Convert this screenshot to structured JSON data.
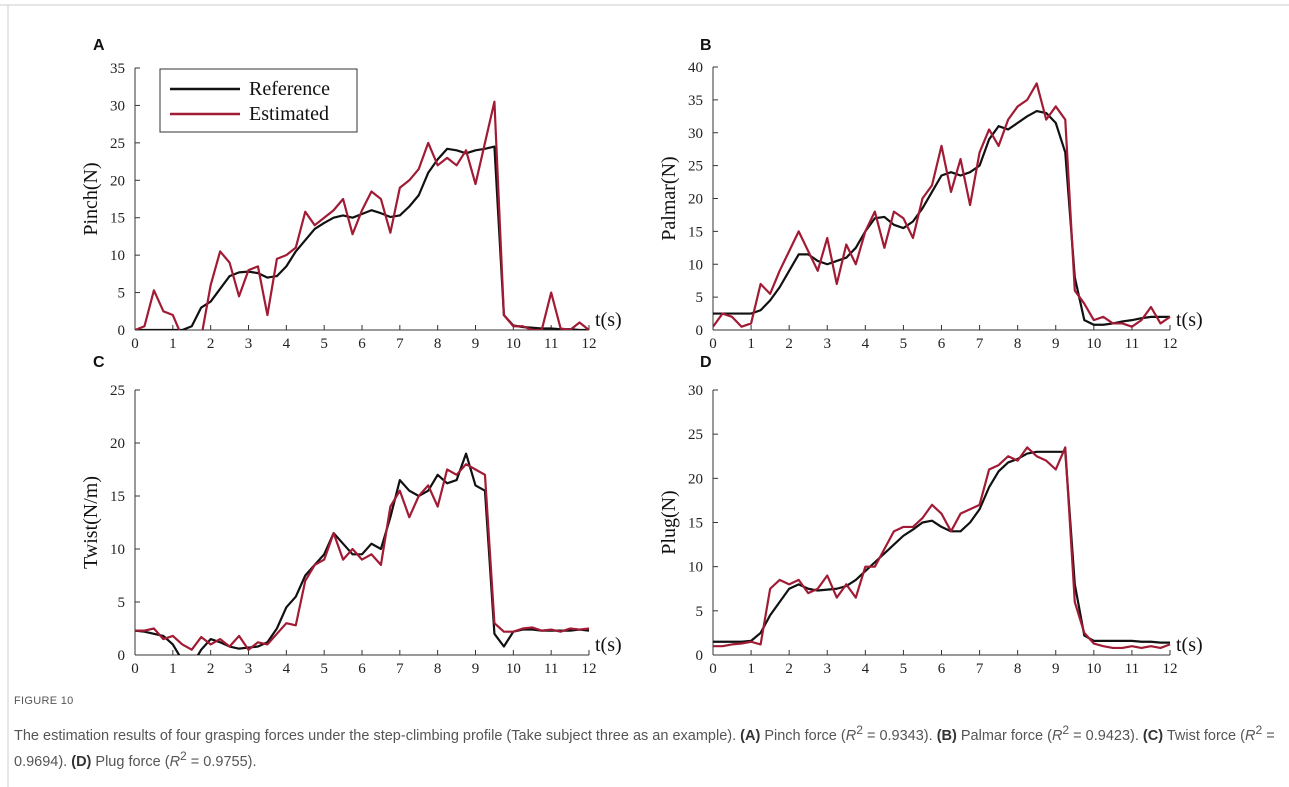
{
  "figure": {
    "label": "FIGURE 10",
    "caption": [
      {
        "text": "The estimation results of four grasping forces under the step-climbing profile (Take subject three as an example). ",
        "style": "plain"
      },
      {
        "text": "(A)",
        "style": "bold"
      },
      {
        "text": " Pinch force (",
        "style": "plain"
      },
      {
        "text": "R",
        "style": "italic"
      },
      {
        "text": "2",
        "style": "sup"
      },
      {
        "text": " = 0.9343). ",
        "style": "plain"
      },
      {
        "text": "(B)",
        "style": "bold"
      },
      {
        "text": " Palmar force (",
        "style": "plain"
      },
      {
        "text": "R",
        "style": "italic"
      },
      {
        "text": "2",
        "style": "sup"
      },
      {
        "text": " = 0.9423). ",
        "style": "plain"
      },
      {
        "text": "(C)",
        "style": "bold"
      },
      {
        "text": " Twist force (",
        "style": "plain"
      },
      {
        "text": "R",
        "style": "italic"
      },
      {
        "text": "2",
        "style": "sup"
      },
      {
        "text": " = 0.9694). ",
        "style": "plain"
      },
      {
        "text": "(D)",
        "style": "bold"
      },
      {
        "text": " Plug force (",
        "style": "plain"
      },
      {
        "text": "R",
        "style": "italic"
      },
      {
        "text": "2",
        "style": "sup"
      },
      {
        "text": " = 0.9755).",
        "style": "plain"
      }
    ]
  },
  "chart_data": [
    {
      "type": "line",
      "panel": "A",
      "ylabel": "Pinch(N)",
      "xlabel": "t(s)",
      "legend": "upper left",
      "xlim": [
        0,
        12
      ],
      "xticks": [
        0,
        1,
        2,
        3,
        4,
        5,
        6,
        7,
        8,
        9,
        10,
        11,
        12
      ],
      "ylim": [
        0,
        35
      ],
      "yticks": [
        0,
        5,
        10,
        15,
        20,
        25,
        30,
        35
      ],
      "x": [
        0,
        0.25,
        0.5,
        0.75,
        1,
        1.25,
        1.5,
        1.75,
        2,
        2.25,
        2.5,
        2.75,
        3,
        3.25,
        3.5,
        3.75,
        4,
        4.25,
        4.5,
        4.75,
        5,
        5.25,
        5.5,
        5.75,
        6,
        6.25,
        6.5,
        6.75,
        7,
        7.25,
        7.5,
        7.75,
        8,
        8.25,
        8.5,
        8.75,
        9,
        9.25,
        9.5,
        9.75,
        10,
        10.25,
        10.5,
        10.75,
        11,
        11.25,
        11.5,
        11.75,
        12
      ],
      "series": [
        {
          "name": "Reference",
          "color": "#111111",
          "values": [
            0,
            0,
            0,
            0,
            0,
            0,
            0.5,
            3,
            3.8,
            5.5,
            7.2,
            7.7,
            7.8,
            7.6,
            7,
            7.2,
            8.5,
            10.5,
            12,
            13.5,
            14.3,
            15,
            15.3,
            15,
            15.5,
            16,
            15.6,
            15.1,
            15.3,
            16.5,
            18,
            21,
            22.8,
            24.2,
            24,
            23.6,
            24,
            24.2,
            24.5,
            2,
            0.6,
            0.4,
            0.3,
            0.2,
            0.2,
            0.1,
            0.1,
            0,
            0
          ]
        },
        {
          "name": "Estimated",
          "color": "#a11b35",
          "values": [
            0,
            0.5,
            5.3,
            2.5,
            2,
            -1,
            -3,
            -1,
            6,
            10.5,
            9,
            4.5,
            8,
            8.5,
            2,
            9.5,
            10,
            11,
            15.8,
            14,
            15,
            16,
            17.5,
            12.8,
            16,
            18.5,
            17.5,
            13,
            19,
            20,
            21.5,
            25,
            22,
            23,
            22,
            24,
            19.5,
            25,
            30.5,
            2,
            0.5,
            0.5,
            0,
            0,
            5,
            0.2,
            0,
            1,
            0
          ]
        }
      ]
    },
    {
      "type": "line",
      "panel": "B",
      "ylabel": "Palmar(N)",
      "xlabel": "t(s)",
      "xlim": [
        0,
        12
      ],
      "xticks": [
        0,
        1,
        2,
        3,
        4,
        5,
        6,
        7,
        8,
        9,
        10,
        11,
        12
      ],
      "ylim": [
        0,
        40
      ],
      "yticks": [
        0,
        5,
        10,
        15,
        20,
        25,
        30,
        35,
        40
      ],
      "x": [
        0,
        0.25,
        0.5,
        0.75,
        1,
        1.25,
        1.5,
        1.75,
        2,
        2.25,
        2.5,
        2.75,
        3,
        3.25,
        3.5,
        3.75,
        4,
        4.25,
        4.5,
        4.75,
        5,
        5.25,
        5.5,
        5.75,
        6,
        6.25,
        6.5,
        6.75,
        7,
        7.25,
        7.5,
        7.75,
        8,
        8.25,
        8.5,
        8.75,
        9,
        9.25,
        9.5,
        9.75,
        10,
        10.25,
        10.5,
        10.75,
        11,
        11.25,
        11.5,
        11.75,
        12
      ],
      "series": [
        {
          "name": "Reference",
          "color": "#111111",
          "values": [
            2.5,
            2.5,
            2.5,
            2.5,
            2.5,
            3,
            4.5,
            6.5,
            9,
            11.5,
            11.5,
            10.5,
            10,
            10.5,
            11,
            12.5,
            15,
            17,
            17.2,
            16,
            15.5,
            16.5,
            18.5,
            21,
            23.5,
            24,
            23.5,
            24,
            25,
            29,
            31,
            30.5,
            31.5,
            32.5,
            33.3,
            33,
            31.5,
            27,
            8,
            1.5,
            0.8,
            0.8,
            1,
            1.3,
            1.5,
            1.8,
            2,
            2,
            2
          ]
        },
        {
          "name": "Estimated",
          "color": "#a11b35",
          "values": [
            0.5,
            2.5,
            2,
            0.5,
            1,
            7,
            5.5,
            9,
            12,
            15,
            12,
            9,
            14,
            7,
            13,
            10,
            15,
            18,
            12.5,
            18,
            17,
            14,
            20,
            22,
            28,
            21,
            26,
            19,
            27,
            30.5,
            28,
            32,
            34,
            35,
            37.5,
            32,
            34,
            32,
            6,
            4,
            1.5,
            2,
            1,
            1,
            0.5,
            1.5,
            3.5,
            1,
            2
          ]
        }
      ]
    },
    {
      "type": "line",
      "panel": "C",
      "ylabel": "Twist(N/m)",
      "xlabel": "t(s)",
      "xlim": [
        0,
        12
      ],
      "xticks": [
        0,
        1,
        2,
        3,
        4,
        5,
        6,
        7,
        8,
        9,
        10,
        11,
        12
      ],
      "ylim": [
        0,
        25
      ],
      "yticks": [
        0,
        5,
        10,
        15,
        20,
        25
      ],
      "x": [
        0,
        0.25,
        0.5,
        0.75,
        1,
        1.25,
        1.5,
        1.75,
        2,
        2.25,
        2.5,
        2.75,
        3,
        3.25,
        3.5,
        3.75,
        4,
        4.25,
        4.5,
        4.75,
        5,
        5.25,
        5.5,
        5.75,
        6,
        6.25,
        6.5,
        6.75,
        7,
        7.25,
        7.5,
        7.75,
        8,
        8.25,
        8.5,
        8.75,
        9,
        9.25,
        9.5,
        9.75,
        10,
        10.25,
        10.5,
        10.75,
        11,
        11.25,
        11.5,
        11.75,
        12
      ],
      "series": [
        {
          "name": "Reference",
          "color": "#111111",
          "values": [
            2.3,
            2.2,
            2,
            1.8,
            1,
            -0.5,
            -1,
            0.5,
            1.5,
            1.2,
            0.8,
            0.6,
            0.7,
            0.8,
            1.2,
            2.5,
            4.5,
            5.5,
            7.5,
            8.5,
            9.5,
            11.5,
            10.5,
            9.5,
            9.5,
            10.5,
            10,
            13,
            16.5,
            15.5,
            15,
            15.5,
            17,
            16.2,
            16.5,
            19,
            16,
            15.5,
            2,
            0.8,
            2.2,
            2.4,
            2.4,
            2.3,
            2.3,
            2.3,
            2.3,
            2.4,
            2.3
          ]
        },
        {
          "name": "Estimated",
          "color": "#a11b35",
          "values": [
            2.3,
            2.3,
            2.5,
            1.5,
            1.8,
            1,
            0.5,
            1.7,
            1,
            1.5,
            0.8,
            1.8,
            0.5,
            1.2,
            1,
            2,
            3,
            2.8,
            7,
            8.5,
            9,
            11.5,
            9,
            10,
            9,
            9.5,
            8.5,
            14,
            15.5,
            13,
            15,
            16,
            14,
            17.5,
            17,
            18,
            17.5,
            17,
            3,
            2.2,
            2.2,
            2.5,
            2.6,
            2.3,
            2.4,
            2.2,
            2.5,
            2.4,
            2.5
          ]
        }
      ]
    },
    {
      "type": "line",
      "panel": "D",
      "ylabel": "Plug(N)",
      "xlabel": "t(s)",
      "xlim": [
        0,
        12
      ],
      "xticks": [
        0,
        1,
        2,
        3,
        4,
        5,
        6,
        7,
        8,
        9,
        10,
        11,
        12
      ],
      "ylim": [
        0,
        30
      ],
      "yticks": [
        0,
        5,
        10,
        15,
        20,
        25,
        30
      ],
      "x": [
        0,
        0.25,
        0.5,
        0.75,
        1,
        1.25,
        1.5,
        1.75,
        2,
        2.25,
        2.5,
        2.75,
        3,
        3.25,
        3.5,
        3.75,
        4,
        4.25,
        4.5,
        4.75,
        5,
        5.25,
        5.5,
        5.75,
        6,
        6.25,
        6.5,
        6.75,
        7,
        7.25,
        7.5,
        7.75,
        8,
        8.25,
        8.5,
        8.75,
        9,
        9.25,
        9.5,
        9.75,
        10,
        10.25,
        10.5,
        10.75,
        11,
        11.25,
        11.5,
        11.75,
        12
      ],
      "series": [
        {
          "name": "Reference",
          "color": "#111111",
          "values": [
            1.5,
            1.5,
            1.5,
            1.5,
            1.6,
            2.5,
            4.5,
            6,
            7.5,
            8,
            7.5,
            7.3,
            7.4,
            7.5,
            7.8,
            8.5,
            9.5,
            10.5,
            11.5,
            12.5,
            13.5,
            14.2,
            15,
            15.2,
            14.5,
            14,
            14,
            15,
            16.5,
            19,
            20.8,
            21.8,
            22.2,
            22.8,
            23,
            23,
            23,
            23,
            8,
            2.2,
            1.6,
            1.6,
            1.6,
            1.6,
            1.6,
            1.5,
            1.5,
            1.4,
            1.4
          ]
        },
        {
          "name": "Estimated",
          "color": "#a11b35",
          "values": [
            1,
            1,
            1.2,
            1.3,
            1.5,
            1.2,
            7.5,
            8.5,
            8,
            8.5,
            7,
            7.5,
            9,
            6.5,
            8,
            6.5,
            10,
            10,
            12,
            14,
            14.5,
            14.5,
            15.5,
            17,
            16,
            14,
            16,
            16.5,
            17,
            21,
            21.5,
            22.5,
            22,
            23.5,
            22.5,
            22,
            21,
            23.5,
            6,
            2.5,
            1.3,
            1,
            0.8,
            0.8,
            1,
            0.8,
            1,
            0.8,
            1.2
          ]
        }
      ]
    }
  ]
}
